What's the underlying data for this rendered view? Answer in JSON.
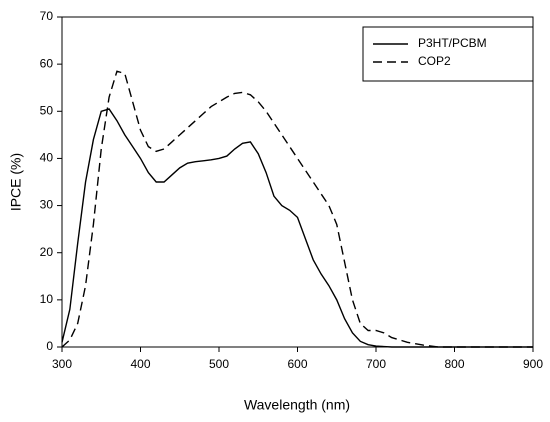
{
  "chart_data": {
    "type": "line",
    "x_label": "Wavelength (nm)",
    "y_label": "IPCE (%)",
    "x": [
      300,
      310,
      320,
      330,
      340,
      350,
      360,
      370,
      380,
      390,
      400,
      410,
      420,
      430,
      440,
      450,
      460,
      470,
      480,
      490,
      500,
      510,
      520,
      530,
      540,
      550,
      560,
      570,
      580,
      590,
      600,
      610,
      620,
      630,
      640,
      650,
      660,
      670,
      680,
      690,
      700,
      710,
      720,
      730,
      740,
      750,
      760,
      770,
      780,
      790,
      800,
      850,
      900
    ],
    "series": [
      {
        "name": "P3HT/PCBM",
        "color": "#000000",
        "line_style": "solid",
        "values": [
          1,
          8,
          22,
          35,
          44,
          50,
          50.5,
          48,
          45,
          42.5,
          40,
          37,
          35,
          35,
          36.5,
          38,
          39,
          39.3,
          39.5,
          39.7,
          40,
          40.5,
          42,
          43.2,
          43.5,
          41,
          37,
          32,
          30,
          29,
          27.5,
          23,
          18.5,
          15.5,
          13,
          10,
          6,
          3,
          1.2,
          0.5,
          0.2,
          0.1,
          0,
          0,
          0,
          0,
          0,
          0,
          0,
          0,
          0,
          0,
          0
        ]
      },
      {
        "name": "COP2",
        "color": "#000000",
        "line_style": "dashed",
        "values": [
          0,
          1.5,
          5,
          13,
          26,
          42,
          53,
          58.5,
          58,
          52,
          46,
          42.5,
          41.5,
          42,
          43.5,
          45,
          46.5,
          48,
          49.5,
          51,
          52,
          53,
          53.8,
          54,
          53.5,
          52,
          50,
          47.5,
          45,
          42.5,
          40,
          37.5,
          35,
          32.5,
          30,
          26,
          18,
          10,
          5,
          3.5,
          3.5,
          3,
          2,
          1.5,
          1,
          0.7,
          0.4,
          0.2,
          0,
          0,
          0,
          0,
          0
        ]
      }
    ],
    "xlim": [
      300,
      900
    ],
    "xticks": [
      300,
      400,
      500,
      600,
      700,
      800,
      900
    ],
    "ylim": [
      0,
      70
    ],
    "yticks": [
      0,
      10,
      20,
      30,
      40,
      50,
      60,
      70
    ],
    "legend": "top-right"
  }
}
